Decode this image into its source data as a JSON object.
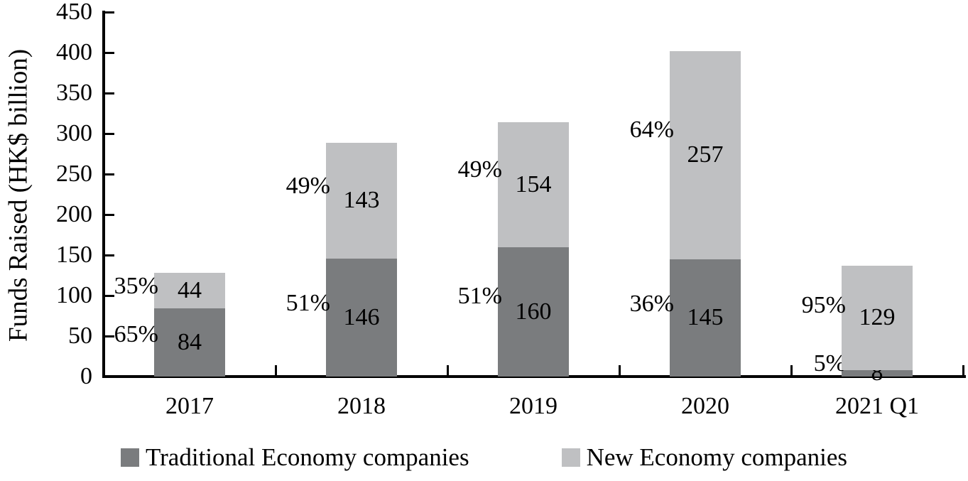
{
  "chart_data": {
    "type": "bar",
    "stacked": true,
    "title": "",
    "xlabel": "",
    "ylabel": "Funds Raised (HK$ billion)",
    "ylim": [
      0,
      450
    ],
    "ytick_step": 50,
    "yticks": [
      0,
      50,
      100,
      150,
      200,
      250,
      300,
      350,
      400,
      450
    ],
    "grid": false,
    "legend_position": "bottom",
    "categories": [
      "2017",
      "2018",
      "2019",
      "2020",
      "2021 Q1"
    ],
    "series": [
      {
        "name": "Traditional Economy companies",
        "color": "#7a7c7e",
        "values": [
          84,
          146,
          160,
          145,
          8
        ],
        "pct_labels": [
          "65%",
          "51%",
          "51%",
          "36%",
          "5%"
        ]
      },
      {
        "name": "New Economy companies",
        "color": "#bfc0c2",
        "values": [
          44,
          143,
          154,
          257,
          129
        ],
        "pct_labels": [
          "35%",
          "49%",
          "49%",
          "64%",
          "95%"
        ]
      }
    ],
    "totals": [
      128,
      289,
      314,
      402,
      137
    ]
  },
  "colors": {
    "axis": "#000000",
    "text": "#000000",
    "background": "#ffffff"
  }
}
